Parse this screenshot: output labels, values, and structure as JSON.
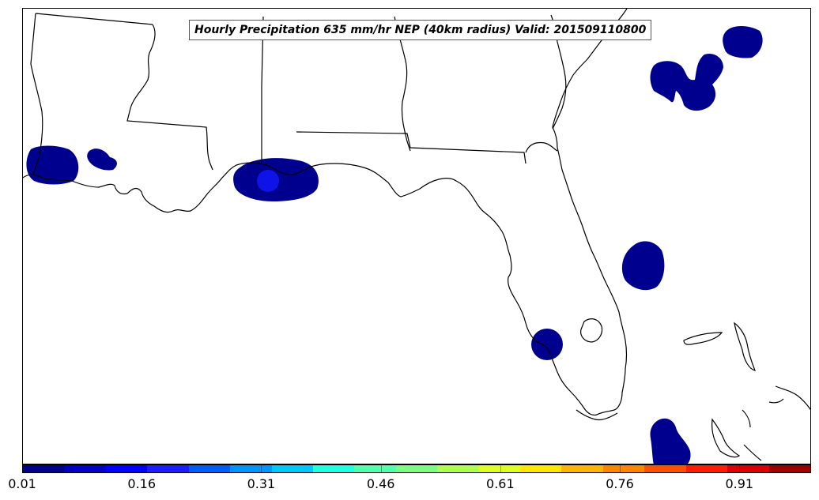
{
  "title": "Hourly Precipitation 635 mm/hr NEP (40km radius) Valid: 201509110800",
  "colorbar": {
    "colors": [
      "#00008f",
      "#0000c4",
      "#0000ff",
      "#1c1cff",
      "#005bff",
      "#0094ff",
      "#00c7ff",
      "#21ffde",
      "#52ffad",
      "#7dff82",
      "#adff52",
      "#deff21",
      "#ffe800",
      "#ffb500",
      "#ff8400",
      "#ff4f00",
      "#ff1c00",
      "#db0000",
      "#9e0000"
    ],
    "tick_labels": [
      "0.01",
      "0.16",
      "0.31",
      "0.46",
      "0.61",
      "0.76",
      "0.91"
    ],
    "min": 0.01,
    "max": 1.0
  },
  "precip_colors": {
    "low": "#00008f",
    "peak": "#0e14e8"
  }
}
